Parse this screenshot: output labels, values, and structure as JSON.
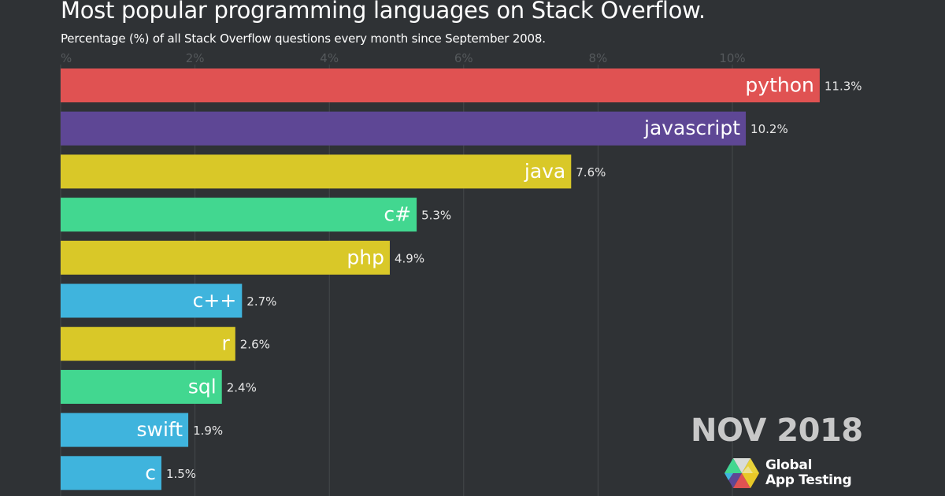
{
  "chart_data": {
    "type": "bar",
    "orientation": "horizontal",
    "title": "Most popular programming languages on Stack Overflow.",
    "subtitle": "Percentage (%) of all Stack Overflow questions every month since September 2008.",
    "xlabel": "",
    "ylabel": "",
    "xlim": [
      0,
      12.2
    ],
    "x_ticks": [
      0,
      2,
      4,
      6,
      8,
      10
    ],
    "x_tick_labels": [
      "%",
      "2%",
      "4%",
      "6%",
      "8%",
      "10%"
    ],
    "grid": true,
    "legend": "none",
    "categories": [
      "python",
      "javascript",
      "java",
      "c#",
      "php",
      "c++",
      "r",
      "sql",
      "swift",
      "c"
    ],
    "values": [
      11.3,
      10.2,
      7.6,
      5.3,
      4.9,
      2.7,
      2.6,
      2.4,
      1.9,
      1.5
    ],
    "value_labels": [
      "11.3%",
      "10.2%",
      "7.6%",
      "5.3%",
      "4.9%",
      "2.7%",
      "2.6%",
      "2.4%",
      "1.9%",
      "1.5%"
    ],
    "colors": [
      "#e05252",
      "#5e4795",
      "#d9c828",
      "#42d790",
      "#d9c828",
      "#3fb4dd",
      "#d9c828",
      "#42d790",
      "#3fb4dd",
      "#3fb4dd"
    ],
    "period_label": "NOV 2018"
  },
  "brand": {
    "line1": "Global",
    "line2": "App Testing"
  }
}
